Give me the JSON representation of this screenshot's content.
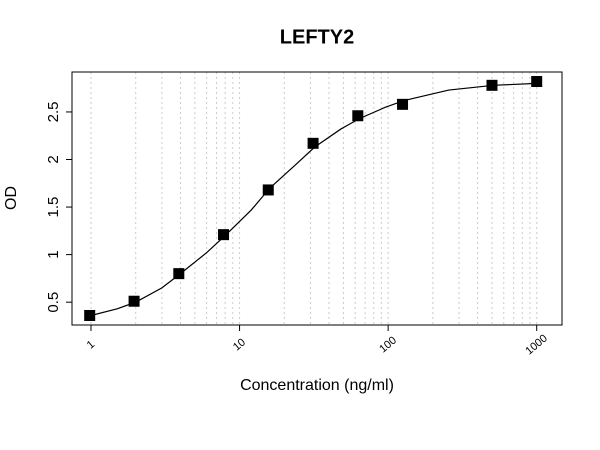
{
  "chart_data": {
    "type": "scatter",
    "title": "LEFTY2",
    "x_label": "Concentration (ng/ml)",
    "y_label": "OD",
    "x": [
      0.98,
      1.95,
      3.9,
      7.8,
      15.6,
      31.25,
      62.5,
      125,
      500,
      1000
    ],
    "values": [
      0.36,
      0.51,
      0.8,
      1.21,
      1.68,
      2.17,
      2.46,
      2.58,
      2.78,
      2.82
    ],
    "color": "#000000",
    "fit": {
      "x": [
        0.95,
        1,
        1.5,
        2,
        3,
        4,
        6,
        8,
        12,
        16,
        24,
        32,
        48,
        64,
        96,
        128,
        256,
        512,
        1000
      ],
      "y": [
        0.35,
        0.36,
        0.43,
        0.5,
        0.65,
        0.8,
        1.02,
        1.2,
        1.47,
        1.7,
        1.95,
        2.13,
        2.32,
        2.43,
        2.55,
        2.62,
        2.73,
        2.78,
        2.8
      ],
      "color": "#000000"
    },
    "xlog": true,
    "xlim": [
      0.745,
      1480
    ],
    "ylim": [
      0.26,
      2.92
    ],
    "xticks": [
      1,
      10,
      100,
      1000
    ],
    "yticks": [
      0.5,
      1.0,
      1.5,
      2.0,
      2.5
    ],
    "xgrid": [
      1,
      2,
      3,
      4,
      5,
      6,
      7,
      8,
      9,
      10,
      20,
      30,
      40,
      50,
      60,
      70,
      80,
      90,
      100,
      200,
      300,
      400,
      500,
      600,
      700,
      800,
      900,
      1000
    ],
    "grid": true
  }
}
